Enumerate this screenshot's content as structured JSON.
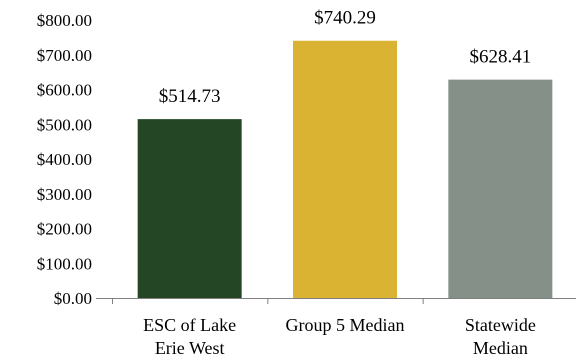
{
  "chart_data": {
    "type": "bar",
    "title": "",
    "xlabel": "",
    "ylabel": "",
    "ylim": [
      0,
      800
    ],
    "yticks": [
      0,
      100,
      200,
      300,
      400,
      500,
      600,
      700,
      800
    ],
    "ytick_labels": [
      "$0.00",
      "$100.00",
      "$200.00",
      "$300.00",
      "$400.00",
      "$500.00",
      "$600.00",
      "$700.00",
      "$800.00"
    ],
    "categories": [
      [
        "ESC of Lake",
        "Erie West"
      ],
      [
        "Group 5 Median"
      ],
      [
        "Statewide",
        "Median"
      ]
    ],
    "values": [
      514.73,
      740.29,
      628.41
    ],
    "data_labels": [
      "$514.73",
      "$740.29",
      "$628.41"
    ],
    "colors": [
      "#244625",
      "#d9b331",
      "#859088"
    ],
    "grid": false,
    "legend": "none"
  }
}
